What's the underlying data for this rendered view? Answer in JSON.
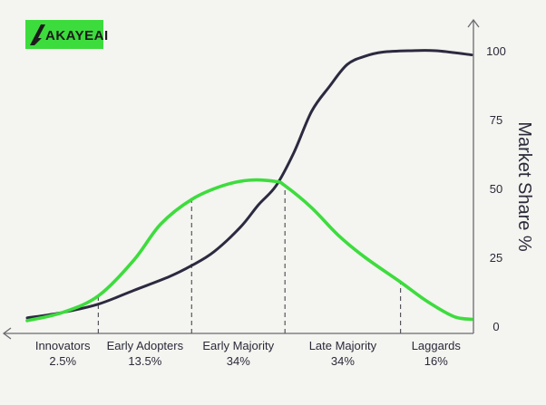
{
  "logo": {
    "text": "AKAYEAI",
    "bg_color": "#3ddc3d"
  },
  "chart_data": {
    "type": "line",
    "title": "",
    "xlabel": "",
    "ylabel": "Market Share %",
    "ylim": [
      0,
      100
    ],
    "yticks": [
      0,
      25,
      50,
      75,
      100
    ],
    "grid": false,
    "categories": [
      {
        "name": "Innovators",
        "share": "2.5%"
      },
      {
        "name": "Early Adopters",
        "share": "13.5%"
      },
      {
        "name": "Early Majority",
        "share": "34%"
      },
      {
        "name": "Late Majority",
        "share": "34%"
      },
      {
        "name": "Laggards",
        "share": "16%"
      }
    ],
    "x_range": [
      0,
      100
    ],
    "boundaries_x": [
      16,
      37,
      58,
      84
    ],
    "series": [
      {
        "color": "#2b2a40",
        "x": [
          0,
          8,
          16,
          24,
          32,
          37,
          42,
          48,
          52,
          56,
          60,
          64,
          68,
          72,
          76,
          80,
          86,
          92,
          100
        ],
        "y": [
          3,
          5,
          8,
          13,
          18,
          22,
          27,
          36,
          44,
          51,
          63,
          78,
          87,
          95,
          98,
          99.5,
          100,
          100,
          98.5
        ]
      },
      {
        "color": "#3ddc3d",
        "x": [
          0,
          8,
          16,
          24,
          30,
          37,
          44,
          50,
          56,
          58,
          64,
          70,
          76,
          84,
          90,
          96,
          100
        ],
        "y": [
          2,
          5,
          11,
          24,
          37,
          46,
          51,
          53,
          52.5,
          51,
          43,
          33,
          25,
          16,
          9,
          3.5,
          2.5
        ]
      }
    ]
  }
}
